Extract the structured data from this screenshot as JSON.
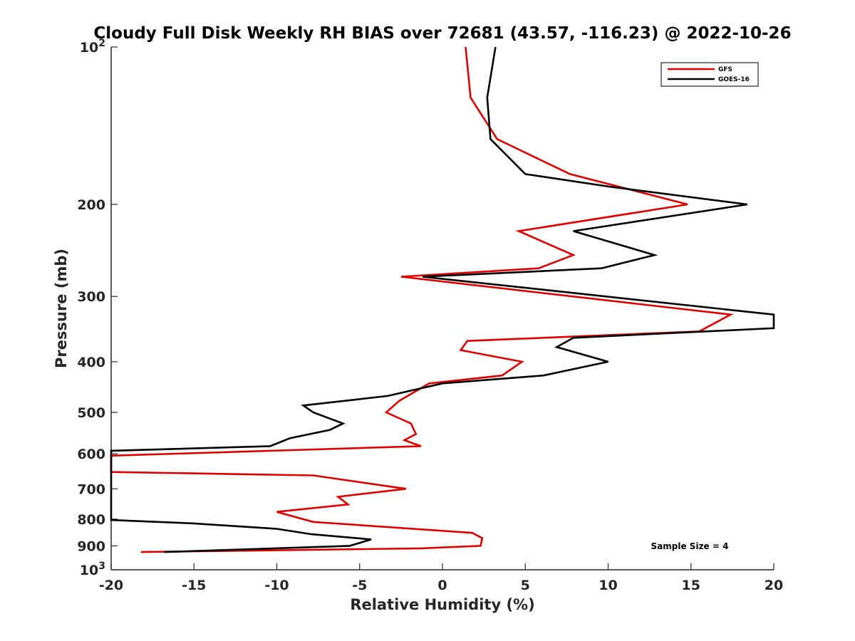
{
  "chart_data": {
    "type": "line",
    "title": "Cloudy Full Disk Weekly RH BIAS over 72681 (43.57, -116.23) @ 2022-10-26",
    "xlabel": "Relative Humidity (%)",
    "ylabel": "Pressure (mb)",
    "xlim": [
      -20,
      20
    ],
    "ylim": [
      100,
      1000
    ],
    "yscale": "log",
    "yreversed": true,
    "grid": false,
    "legend_position": "top-right",
    "x_ticks": [
      -20,
      -15,
      -10,
      -5,
      0,
      5,
      10,
      15,
      20
    ],
    "x_tick_labels": [
      "-20",
      "-15",
      "-10",
      "-5",
      "0",
      "5",
      "10",
      "15",
      "20"
    ],
    "y_ticks": [
      {
        "value": 100,
        "base": "10",
        "exp": "2"
      },
      {
        "value": 200,
        "label": "200"
      },
      {
        "value": 300,
        "label": "300"
      },
      {
        "value": 400,
        "label": "400"
      },
      {
        "value": 500,
        "label": "500"
      },
      {
        "value": 600,
        "label": "600"
      },
      {
        "value": 700,
        "label": "700"
      },
      {
        "value": 800,
        "label": "800"
      },
      {
        "value": 900,
        "label": "900"
      },
      {
        "value": 1000,
        "base": "10",
        "exp": "3"
      }
    ],
    "annotation": "Sample Size = 4",
    "series": [
      {
        "name": "GFS",
        "color": "#e00000",
        "points": [
          [
            1.4,
            100
          ],
          [
            1.7,
            125
          ],
          [
            3.3,
            150
          ],
          [
            7.7,
            175
          ],
          [
            14.8,
            200
          ],
          [
            4.6,
            225
          ],
          [
            7.9,
            250
          ],
          [
            5.8,
            265
          ],
          [
            -2.5,
            275
          ],
          [
            17.4,
            325
          ],
          [
            15.5,
            350
          ],
          [
            1.5,
            365
          ],
          [
            1.1,
            380
          ],
          [
            4.8,
            400
          ],
          [
            3.6,
            425
          ],
          [
            -0.8,
            440
          ],
          [
            -2.6,
            475
          ],
          [
            -3.4,
            500
          ],
          [
            -1.9,
            525
          ],
          [
            -1.6,
            550
          ],
          [
            -2.3,
            565
          ],
          [
            -1.3,
            580
          ],
          [
            -20,
            605
          ],
          [
            -20,
            650
          ],
          [
            -7.8,
            660
          ],
          [
            -3.6,
            690
          ],
          [
            -2.2,
            700
          ],
          [
            -6.3,
            725
          ],
          [
            -5.7,
            750
          ],
          [
            -10,
            775
          ],
          [
            -7.8,
            810
          ],
          [
            1.8,
            850
          ],
          [
            2.4,
            870
          ],
          [
            2.3,
            900
          ],
          [
            -1.3,
            910
          ],
          [
            -18.2,
            925
          ]
        ]
      },
      {
        "name": "GOES-16",
        "color": "#000000",
        "points": [
          [
            3.2,
            100
          ],
          [
            2.7,
            125
          ],
          [
            2.9,
            150
          ],
          [
            5.0,
            175
          ],
          [
            10.1,
            185
          ],
          [
            18.4,
            200
          ],
          [
            7.9,
            225
          ],
          [
            12.8,
            250
          ],
          [
            9.6,
            265
          ],
          [
            -1.2,
            275
          ],
          [
            20,
            325
          ],
          [
            20,
            345
          ],
          [
            7.9,
            360
          ],
          [
            6.9,
            375
          ],
          [
            10.0,
            400
          ],
          [
            6.1,
            425
          ],
          [
            0,
            440
          ],
          [
            -3.3,
            465
          ],
          [
            -8.4,
            485
          ],
          [
            -7.8,
            500
          ],
          [
            -6.0,
            525
          ],
          [
            -6.8,
            540
          ],
          [
            -9.2,
            560
          ],
          [
            -10.4,
            580
          ],
          [
            -20,
            592
          ],
          [
            -20,
            803
          ],
          [
            -15.1,
            815
          ],
          [
            -10.0,
            835
          ],
          [
            -7.9,
            855
          ],
          [
            -4.3,
            875
          ],
          [
            -5.6,
            900
          ],
          [
            -16.8,
            925
          ]
        ]
      }
    ]
  }
}
